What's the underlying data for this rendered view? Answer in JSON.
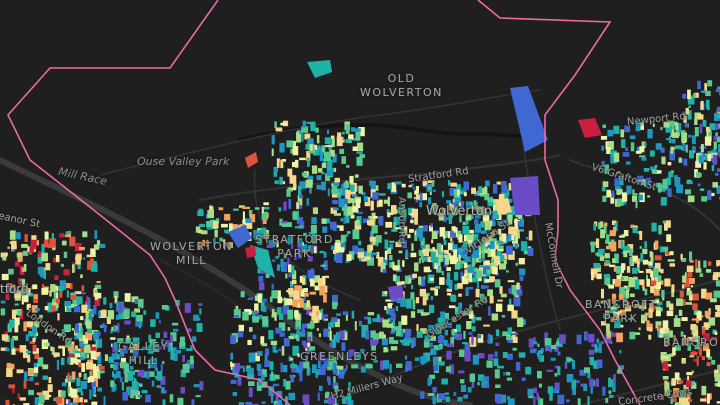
{
  "map": {
    "background": "#1f1f1f",
    "boundary_color": "#ee6aa7",
    "building_palette": [
      "#6a4cc7",
      "#3f68d2",
      "#1e96c0",
      "#1fb3a8",
      "#57c98f",
      "#a6de88",
      "#eef3a6",
      "#f7d88a",
      "#f4a35d",
      "#e0523c",
      "#c8203e"
    ],
    "labels": {
      "old_wolverton": "OLD\nWOLVERTON",
      "ouse_valley_park": "Ouse Valley Park",
      "mill_race": "Mill Race",
      "eleanor_st": "eanor St",
      "stratford": "tford",
      "wolverton_mill": "WOLVERTON\nMILL",
      "stratford_park": "STRATFORD\nPARK",
      "london_rd": "London Rd",
      "galley_hill": "GALLEY\nHILL",
      "greenleys": "GREENLEYS",
      "stratford_rd": "Stratford Rd",
      "wolverton": "Wolverton",
      "anson_rd": "Anson Rd",
      "victoria_st": "Victoria St",
      "mcconnell_dr": "McConnell Dr",
      "gloucester_rd": "Gloucester Rd",
      "millers_way": "H2 Millers Way",
      "newport_rd": "Newport Rd",
      "grafton_st": "V6 Grafton St",
      "bancroft_park": "BANCROFT\nPARK",
      "bancroft": "BANCRO",
      "concrete_cows": "Concrete Cows"
    }
  }
}
